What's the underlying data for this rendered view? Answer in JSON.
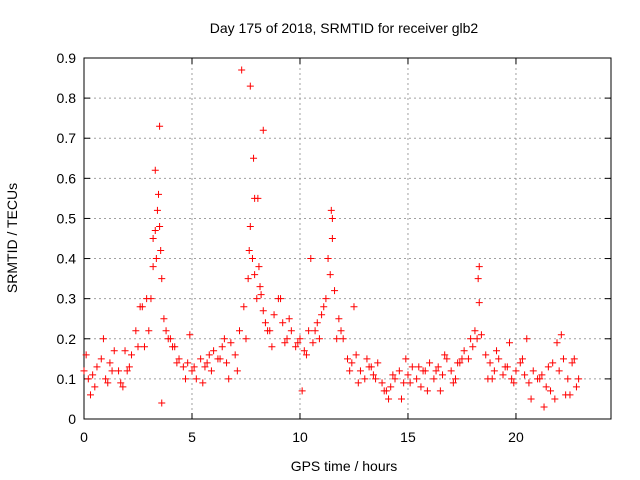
{
  "chart_data": {
    "type": "scatter",
    "title": "Day 175 of 2018, SRMTID for receiver glb2",
    "xlabel": "GPS time / hours",
    "ylabel": "SRMTID / TECUs",
    "xlim": [
      0,
      24.4
    ],
    "ylim": [
      0,
      0.9
    ],
    "xticks": [
      0,
      5,
      10,
      15,
      20
    ],
    "xtick_labels": [
      "0",
      "5",
      "10",
      "15",
      "20"
    ],
    "yticks": [
      0,
      0.1,
      0.2,
      0.3,
      0.4,
      0.5,
      0.6,
      0.7,
      0.8,
      0.9
    ],
    "ytick_labels": [
      "0",
      "0.1",
      "0.2",
      "0.3",
      "0.4",
      "0.5",
      "0.6",
      "0.7",
      "0.8",
      "0.9"
    ],
    "grid": true,
    "marker": "plus",
    "color": "#ff0000",
    "series": [
      {
        "name": "glb2",
        "x": [
          0.0,
          0.2,
          0.4,
          0.6,
          0.8,
          1.0,
          1.2,
          1.4,
          1.6,
          1.8,
          2.0,
          2.2,
          2.4,
          2.6,
          2.8,
          3.0,
          3.1,
          3.2,
          3.3,
          3.4,
          3.45,
          3.5,
          3.55,
          3.6,
          3.7,
          3.8,
          4.0,
          4.2,
          4.4,
          4.6,
          4.8,
          5.0,
          5.2,
          5.4,
          5.6,
          5.8,
          6.0,
          6.2,
          6.4,
          6.6,
          6.8,
          7.0,
          7.2,
          7.4,
          7.6,
          7.65,
          7.7,
          7.8,
          7.9,
          8.0,
          8.1,
          8.15,
          8.2,
          8.3,
          8.4,
          8.6,
          8.8,
          9.0,
          9.2,
          9.4,
          9.6,
          9.8,
          10.0,
          10.2,
          10.4,
          10.6,
          10.8,
          11.0,
          11.2,
          11.4,
          11.5,
          11.6,
          11.8,
          12.0,
          12.2,
          12.4,
          12.6,
          12.8,
          13.0,
          13.2,
          13.4,
          13.6,
          13.8,
          14.0,
          14.2,
          14.4,
          14.6,
          14.8,
          15.0,
          15.2,
          15.4,
          15.6,
          15.8,
          16.0,
          16.2,
          16.4,
          16.6,
          16.8,
          17.0,
          17.2,
          17.4,
          17.6,
          17.8,
          18.0,
          18.2,
          18.25,
          18.4,
          18.6,
          18.8,
          19.0,
          19.2,
          19.4,
          19.6,
          19.8,
          20.0,
          20.2,
          20.4,
          20.6,
          20.8,
          21.0,
          21.2,
          21.4,
          21.6,
          21.8,
          22.0,
          22.2,
          22.4,
          22.6,
          22.8,
          0.1,
          0.5,
          0.9,
          1.3,
          1.7,
          2.1,
          2.5,
          2.9,
          3.3,
          3.5,
          3.9,
          4.3,
          4.7,
          5.1,
          5.5,
          5.9,
          6.3,
          6.7,
          7.1,
          7.5,
          7.9,
          8.3,
          8.7,
          9.1,
          9.5,
          9.9,
          10.3,
          10.7,
          11.1,
          11.5,
          11.9,
          12.3,
          12.7,
          13.1,
          13.5,
          13.9,
          14.3,
          14.7,
          15.1,
          15.5,
          15.9,
          16.3,
          16.7,
          17.1,
          17.5,
          17.9,
          18.3,
          18.7,
          19.1,
          19.5,
          19.9,
          20.3,
          20.7,
          21.1,
          21.5,
          21.9,
          22.3,
          22.7,
          0.3,
          1.1,
          1.9,
          2.7,
          3.2,
          3.35,
          3.6,
          4.1,
          4.9,
          5.7,
          6.5,
          7.3,
          7.7,
          7.85,
          8.05,
          8.5,
          9.3,
          10.1,
          10.5,
          10.9,
          11.3,
          11.45,
          11.7,
          12.5,
          13.3,
          14.1,
          14.9,
          15.7,
          16.5,
          17.3,
          18.1,
          18.3,
          18.9,
          19.7,
          20.5,
          21.3,
          21.7,
          22.1,
          22.5,
          22.9
        ],
        "y": [
          0.12,
          0.1,
          0.11,
          0.13,
          0.15,
          0.1,
          0.14,
          0.17,
          0.12,
          0.08,
          0.12,
          0.16,
          0.22,
          0.28,
          0.18,
          0.22,
          0.3,
          0.38,
          0.47,
          0.52,
          0.56,
          0.48,
          0.42,
          0.35,
          0.25,
          0.22,
          0.2,
          0.18,
          0.15,
          0.13,
          0.14,
          0.12,
          0.1,
          0.15,
          0.13,
          0.16,
          0.17,
          0.15,
          0.18,
          0.14,
          0.19,
          0.16,
          0.22,
          0.28,
          0.35,
          0.42,
          0.48,
          0.4,
          0.36,
          0.3,
          0.38,
          0.33,
          0.31,
          0.27,
          0.24,
          0.22,
          0.26,
          0.3,
          0.24,
          0.2,
          0.22,
          0.18,
          0.2,
          0.17,
          0.22,
          0.19,
          0.24,
          0.26,
          0.3,
          0.36,
          0.45,
          0.32,
          0.25,
          0.2,
          0.15,
          0.14,
          0.16,
          0.12,
          0.1,
          0.13,
          0.11,
          0.14,
          0.09,
          0.07,
          0.08,
          0.1,
          0.12,
          0.09,
          0.11,
          0.13,
          0.1,
          0.08,
          0.12,
          0.14,
          0.1,
          0.13,
          0.11,
          0.15,
          0.12,
          0.1,
          0.14,
          0.17,
          0.15,
          0.18,
          0.2,
          0.35,
          0.21,
          0.16,
          0.14,
          0.12,
          0.15,
          0.11,
          0.13,
          0.1,
          0.12,
          0.14,
          0.11,
          0.09,
          0.12,
          0.1,
          0.11,
          0.08,
          0.07,
          0.05,
          0.12,
          0.15,
          0.1,
          0.14,
          0.08,
          0.16,
          0.08,
          0.2,
          0.12,
          0.09,
          0.13,
          0.18,
          0.3,
          0.62,
          0.73,
          0.2,
          0.14,
          0.1,
          0.13,
          0.09,
          0.12,
          0.15,
          0.1,
          0.12,
          0.2,
          0.55,
          0.72,
          0.18,
          0.3,
          0.25,
          0.19,
          0.16,
          0.22,
          0.28,
          0.5,
          0.22,
          0.12,
          0.09,
          0.15,
          0.1,
          0.07,
          0.11,
          0.05,
          0.09,
          0.13,
          0.07,
          0.12,
          0.16,
          0.09,
          0.15,
          0.2,
          0.38,
          0.1,
          0.17,
          0.13,
          0.09,
          0.15,
          0.05,
          0.1,
          0.13,
          0.19,
          0.06,
          0.15,
          0.06,
          0.09,
          0.17,
          0.28,
          0.45,
          0.4,
          0.04,
          0.18,
          0.21,
          0.14,
          0.2,
          0.87,
          0.83,
          0.65,
          0.55,
          0.22,
          0.19,
          0.07,
          0.4,
          0.2,
          0.4,
          0.52,
          0.2,
          0.28,
          0.13,
          0.05,
          0.15,
          0.12,
          0.07,
          0.14,
          0.22,
          0.29,
          0.1,
          0.19,
          0.2,
          0.03,
          0.14,
          0.21,
          0.06,
          0.1
        ]
      }
    ]
  }
}
